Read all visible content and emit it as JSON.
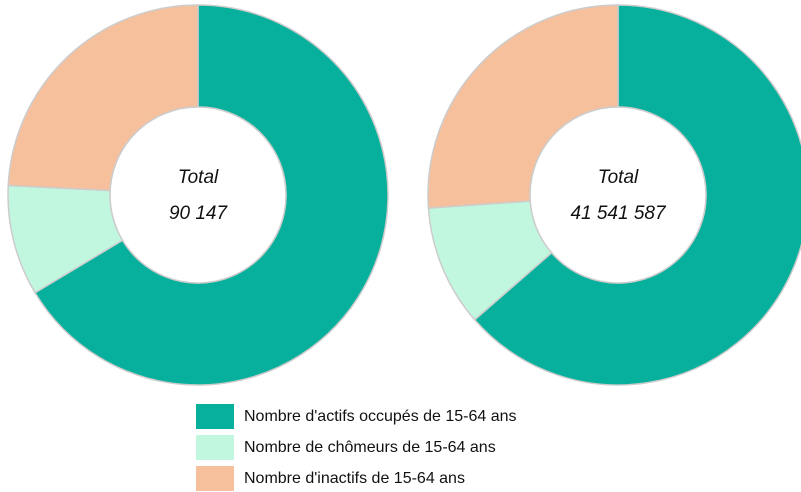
{
  "chart_data": [
    {
      "type": "pie",
      "center_label": "Total",
      "total": "90 147",
      "categories": [
        "Nombre d'actifs occupés de 15-64 ans",
        "Nombre de chômeurs de 15-64 ans",
        "Nombre d'inactifs de 15-64 ans"
      ],
      "values": [
        66.4,
        9.4,
        24.2
      ],
      "colors": [
        "#07b09c",
        "#c2f7df",
        "#f7c09c"
      ]
    },
    {
      "type": "pie",
      "center_label": "Total",
      "total": "41 541 587",
      "values": [
        63.6,
        10.3,
        26.1
      ],
      "colors": [
        "#07b09c",
        "#c2f7df",
        "#f7c09c"
      ]
    }
  ]
}
